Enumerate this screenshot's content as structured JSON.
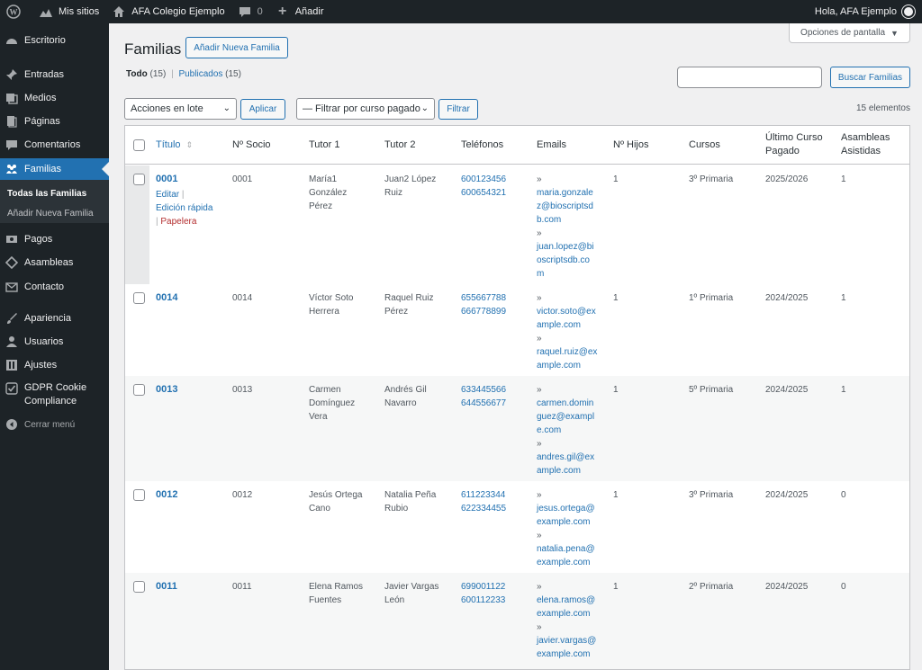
{
  "adminbar": {
    "my_sites": "Mis sitios",
    "site_name": "AFA Colegio Ejemplo",
    "comments_count": "0",
    "new_label": "Añadir",
    "greeting": "Hola, AFA Ejemplo"
  },
  "sidebar": {
    "items": [
      {
        "label": "Escritorio",
        "icon": "dashboard-icon"
      },
      {
        "label": "Entradas",
        "icon": "pin-icon"
      },
      {
        "label": "Medios",
        "icon": "media-icon"
      },
      {
        "label": "Páginas",
        "icon": "page-icon"
      },
      {
        "label": "Comentarios",
        "icon": "comment-icon"
      },
      {
        "label": "Familias",
        "icon": "groups-icon"
      },
      {
        "label": "Pagos",
        "icon": "money-icon"
      },
      {
        "label": "Asambleas",
        "icon": "tag-icon"
      },
      {
        "label": "Contacto",
        "icon": "mail-icon"
      },
      {
        "label": "Apariencia",
        "icon": "brush-icon"
      },
      {
        "label": "Usuarios",
        "icon": "user-icon"
      },
      {
        "label": "Ajustes",
        "icon": "settings-icon"
      },
      {
        "label": "GDPR Cookie",
        "label2": "Compliance",
        "icon": "check-shield-icon"
      },
      {
        "label": "Cerrar menú",
        "icon": "collapse-icon"
      }
    ],
    "submenu": [
      "Todas las Familias",
      "Añadir Nueva Familia"
    ]
  },
  "page": {
    "title": "Familias",
    "add_new": "Añadir Nueva Familia",
    "screen_options": "Opciones de pantalla",
    "views": {
      "all_label": "Todo",
      "all_count": "(15)",
      "published_label": "Publicados",
      "published_count": "(15)"
    },
    "search_button": "Buscar Familias",
    "bulk_actions": "Acciones en lote",
    "apply": "Aplicar",
    "filter_select": "— Filtrar por curso pagado",
    "filter_button": "Filtrar",
    "items_count": "15 elementos"
  },
  "table": {
    "headers": {
      "title": "Título",
      "socio": "Nº Socio",
      "tutor1": "Tutor 1",
      "tutor2": "Tutor 2",
      "telefonos": "Teléfonos",
      "emails": "Emails",
      "hijos": "Nº Hijos",
      "cursos": "Cursos",
      "ultimo1": "Último Curso",
      "ultimo2": "Pagado",
      "asambleas1": "Asambleas",
      "asambleas2": "Asistidas"
    },
    "row_actions": {
      "edit": "Editar",
      "quick_edit": "Edición rápida",
      "trash": "Papelera",
      "sep": "|"
    },
    "rows": [
      {
        "title": "0001",
        "socio": "0001",
        "tutor1": [
          "María1",
          "González",
          "Pérez"
        ],
        "tutor2": [
          "Juan2 López",
          "Ruiz"
        ],
        "phones": [
          "600123456",
          "600654321"
        ],
        "emails": [
          "»",
          "maria.gonzale",
          "z@bioscriptsd",
          "b.com",
          "»",
          "juan.lopez@bi",
          "oscriptsdb.co",
          "m"
        ],
        "hijos": "1",
        "cursos": "3º Primaria",
        "ultimo": "2025/2026",
        "asambleas": "1"
      },
      {
        "title": "0014",
        "socio": "0014",
        "tutor1": [
          "Víctor Soto",
          "Herrera"
        ],
        "tutor2": [
          "Raquel Ruiz",
          "Pérez"
        ],
        "phones": [
          "655667788",
          "666778899"
        ],
        "emails": [
          "»",
          "victor.soto@ex",
          "ample.com",
          "»",
          "raquel.ruiz@ex",
          "ample.com"
        ],
        "hijos": "1",
        "cursos": "1º Primaria",
        "ultimo": "2024/2025",
        "asambleas": "1"
      },
      {
        "title": "0013",
        "socio": "0013",
        "tutor1": [
          "Carmen",
          "Domínguez",
          "Vera"
        ],
        "tutor2": [
          "Andrés Gil",
          "Navarro"
        ],
        "phones": [
          "633445566",
          "644556677"
        ],
        "emails": [
          "»",
          "carmen.domin",
          "guez@exampl",
          "e.com",
          "»",
          "andres.gil@ex",
          "ample.com"
        ],
        "hijos": "1",
        "cursos": "5º Primaria",
        "ultimo": "2024/2025",
        "asambleas": "1"
      },
      {
        "title": "0012",
        "socio": "0012",
        "tutor1": [
          "Jesús Ortega",
          "Cano"
        ],
        "tutor2": [
          "Natalia Peña",
          "Rubio"
        ],
        "phones": [
          "611223344",
          "622334455"
        ],
        "emails": [
          "»",
          "jesus.ortega@",
          "example.com",
          "»",
          "natalia.pena@",
          "example.com"
        ],
        "hijos": "1",
        "cursos": "3º Primaria",
        "ultimo": "2024/2025",
        "asambleas": "0"
      },
      {
        "title": "0011",
        "socio": "0011",
        "tutor1": [
          "Elena Ramos",
          "Fuentes"
        ],
        "tutor2": [
          "Javier Vargas",
          "León"
        ],
        "phones": [
          "699001122",
          "600112233"
        ],
        "emails": [
          "»",
          "elena.ramos@",
          "example.com",
          "»",
          "javier.vargas@",
          "example.com"
        ],
        "hijos": "1",
        "cursos": "2º Primaria",
        "ultimo": "2024/2025",
        "asambleas": "0"
      }
    ]
  }
}
